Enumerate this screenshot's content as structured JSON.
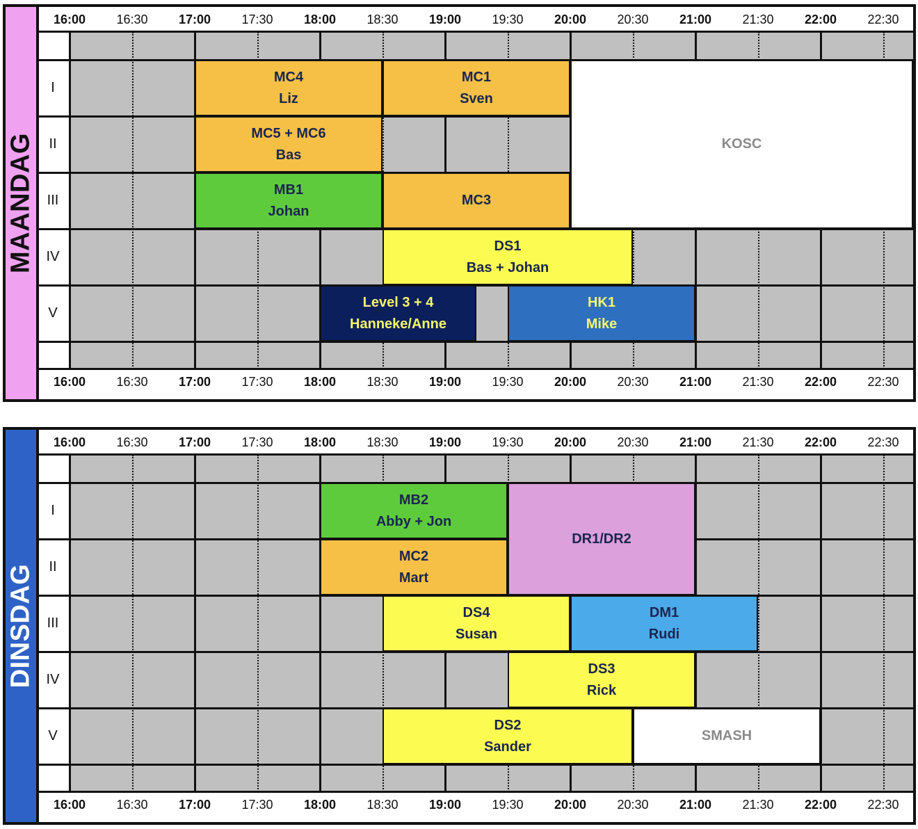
{
  "times": [
    {
      "label": "16:00",
      "bold": true
    },
    {
      "label": "16:30",
      "bold": false
    },
    {
      "label": "17:00",
      "bold": true
    },
    {
      "label": "17:30",
      "bold": false
    },
    {
      "label": "18:00",
      "bold": true
    },
    {
      "label": "18:30",
      "bold": false
    },
    {
      "label": "19:00",
      "bold": true
    },
    {
      "label": "19:30",
      "bold": false
    },
    {
      "label": "20:00",
      "bold": true
    },
    {
      "label": "20:30",
      "bold": false
    },
    {
      "label": "21:00",
      "bold": true
    },
    {
      "label": "21:30",
      "bold": false
    },
    {
      "label": "22:00",
      "bold": true
    },
    {
      "label": "22:30",
      "bold": false
    }
  ],
  "rows": [
    "I",
    "II",
    "III",
    "IV",
    "V"
  ],
  "colors": {
    "grid_fill": "#c0c0c0",
    "orange": "#f5c045",
    "green": "#5ecb3d",
    "yellow": "#fbfb52",
    "navy": "#0b1f5c",
    "blue": "#2e6fc0",
    "lightblue": "#4aaaea",
    "pink": "#dca0dc",
    "white": "#ffffff",
    "text_dark": "#1a2550",
    "text_yellow": "#f7f76a",
    "text_grey": "#8a8a8a"
  },
  "days": [
    {
      "name": "MAANDAG",
      "strip_color": "#f0a2f0",
      "label_color": "#111111",
      "blocks": [
        {
          "lines": [
            "MC4",
            "Liz"
          ],
          "row": 1,
          "rows": 1,
          "start": "17:00",
          "end": "18:30",
          "color": "orange",
          "text": "text_dark"
        },
        {
          "lines": [
            "MC1",
            "Sven"
          ],
          "row": 1,
          "rows": 1,
          "start": "18:30",
          "end": "20:00",
          "color": "orange",
          "text": "text_dark"
        },
        {
          "lines": [
            "KOSC"
          ],
          "row": 1,
          "rows": 3,
          "start": "20:00",
          "end": "22:45",
          "color": "white",
          "text": "text_grey"
        },
        {
          "lines": [
            "MC5 + MC6",
            "Bas"
          ],
          "row": 2,
          "rows": 1,
          "start": "17:00",
          "end": "18:30",
          "color": "orange",
          "text": "text_dark"
        },
        {
          "lines": [
            "MB1",
            "Johan"
          ],
          "row": 3,
          "rows": 1,
          "start": "17:00",
          "end": "18:30",
          "color": "green",
          "text": "text_dark"
        },
        {
          "lines": [
            "MC3"
          ],
          "row": 3,
          "rows": 1,
          "start": "18:30",
          "end": "20:00",
          "color": "orange",
          "text": "text_dark"
        },
        {
          "lines": [
            "DS1",
            "Bas + Johan"
          ],
          "row": 4,
          "rows": 1,
          "start": "18:30",
          "end": "20:30",
          "color": "yellow",
          "text": "text_dark"
        },
        {
          "lines": [
            "Level 3 + 4",
            "Hanneke/Anne"
          ],
          "row": 5,
          "rows": 1,
          "start": "18:00",
          "end": "19:15",
          "color": "navy",
          "text": "text_yellow"
        },
        {
          "lines": [
            "HK1",
            "Mike"
          ],
          "row": 5,
          "rows": 1,
          "start": "19:30",
          "end": "21:00",
          "color": "blue",
          "text": "text_yellow"
        }
      ]
    },
    {
      "name": "DINSDAG",
      "strip_color": "#2f62c6",
      "label_color": "#ffffff",
      "blocks": [
        {
          "lines": [
            "MB2",
            "Abby + Jon"
          ],
          "row": 1,
          "rows": 1,
          "start": "18:00",
          "end": "19:30",
          "color": "green",
          "text": "text_dark"
        },
        {
          "lines": [
            "DR1/DR2"
          ],
          "row": 1,
          "rows": 2,
          "start": "19:30",
          "end": "21:00",
          "color": "pink",
          "text": "text_dark"
        },
        {
          "lines": [
            "MC2",
            "Mart"
          ],
          "row": 2,
          "rows": 1,
          "start": "18:00",
          "end": "19:30",
          "color": "orange",
          "text": "text_dark"
        },
        {
          "lines": [
            "DS4",
            "Susan"
          ],
          "row": 3,
          "rows": 1,
          "start": "18:30",
          "end": "20:00",
          "color": "yellow",
          "text": "text_dark"
        },
        {
          "lines": [
            "DM1",
            "Rudi"
          ],
          "row": 3,
          "rows": 1,
          "start": "20:00",
          "end": "21:30",
          "color": "lightblue",
          "text": "text_dark"
        },
        {
          "lines": [
            "DS3",
            "Rick"
          ],
          "row": 4,
          "rows": 1,
          "start": "19:30",
          "end": "21:00",
          "color": "yellow",
          "text": "text_dark"
        },
        {
          "lines": [
            "DS2",
            "Sander"
          ],
          "row": 5,
          "rows": 1,
          "start": "18:30",
          "end": "20:30",
          "color": "yellow",
          "text": "text_dark"
        },
        {
          "lines": [
            "SMASH"
          ],
          "row": 5,
          "rows": 1,
          "start": "20:30",
          "end": "22:00",
          "color": "white",
          "text": "text_grey"
        }
      ]
    }
  ]
}
